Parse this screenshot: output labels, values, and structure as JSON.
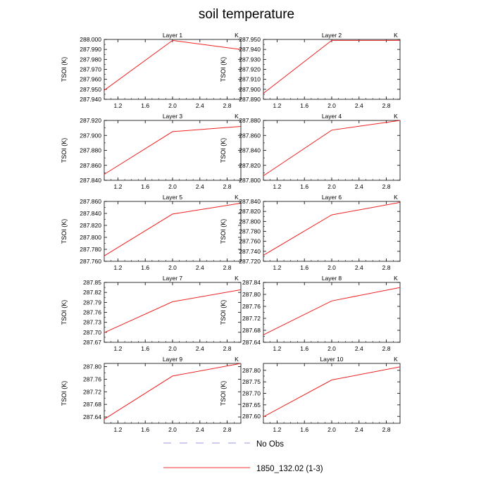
{
  "title": "soil temperature",
  "chart_data": [
    {
      "type": "line",
      "title": "Layer 1",
      "unit": "K",
      "ylabel": "TSOI  (K)",
      "x": [
        1,
        2,
        3
      ],
      "values": [
        287.949,
        287.999,
        287.99
      ],
      "ylim": [
        287.94,
        288.0
      ],
      "yticks": [
        287.94,
        287.95,
        287.96,
        287.97,
        287.98,
        287.99,
        288.0
      ],
      "ydec": 3,
      "xlim": [
        1,
        3
      ],
      "xticks": [
        1.2,
        1.6,
        2.0,
        2.4,
        2.8
      ]
    },
    {
      "type": "line",
      "title": "Layer 2",
      "unit": "K",
      "ylabel": "TSOI  (K)",
      "x": [
        1,
        2,
        3
      ],
      "values": [
        287.896,
        287.949,
        287.949
      ],
      "ylim": [
        287.89,
        287.95
      ],
      "yticks": [
        287.89,
        287.9,
        287.91,
        287.92,
        287.93,
        287.94,
        287.95
      ],
      "ydec": 3,
      "xlim": [
        1,
        3
      ],
      "xticks": [
        1.2,
        1.6,
        2.0,
        2.4,
        2.8
      ]
    },
    {
      "type": "line",
      "title": "Layer 3",
      "unit": "K",
      "ylabel": "TSOI  (K)",
      "x": [
        1,
        2,
        3
      ],
      "values": [
        287.848,
        287.905,
        287.912
      ],
      "ylim": [
        287.84,
        287.92
      ],
      "yticks": [
        287.84,
        287.86,
        287.88,
        287.9,
        287.92
      ],
      "ydec": 3,
      "xlim": [
        1,
        3
      ],
      "xticks": [
        1.2,
        1.6,
        2.0,
        2.4,
        2.8
      ]
    },
    {
      "type": "line",
      "title": "Layer 4",
      "unit": "K",
      "ylabel": "TSOI  (K)",
      "x": [
        1,
        2,
        3
      ],
      "values": [
        287.806,
        287.867,
        287.88
      ],
      "ylim": [
        287.8,
        287.88
      ],
      "yticks": [
        287.8,
        287.82,
        287.84,
        287.86,
        287.88
      ],
      "ydec": 3,
      "xlim": [
        1,
        3
      ],
      "xticks": [
        1.2,
        1.6,
        2.0,
        2.4,
        2.8
      ]
    },
    {
      "type": "line",
      "title": "Layer 5",
      "unit": "K",
      "ylabel": "TSOI  (K)",
      "x": [
        1,
        2,
        3
      ],
      "values": [
        287.769,
        287.839,
        287.857
      ],
      "ylim": [
        287.76,
        287.86
      ],
      "yticks": [
        287.76,
        287.78,
        287.8,
        287.82,
        287.84,
        287.86
      ],
      "ydec": 3,
      "xlim": [
        1,
        3
      ],
      "xticks": [
        1.2,
        1.6,
        2.0,
        2.4,
        2.8
      ]
    },
    {
      "type": "line",
      "title": "Layer 6",
      "unit": "K",
      "ylabel": "TSOI  (K)",
      "x": [
        1,
        2,
        3
      ],
      "values": [
        287.732,
        287.813,
        287.838
      ],
      "ylim": [
        287.72,
        287.84
      ],
      "yticks": [
        287.72,
        287.74,
        287.76,
        287.78,
        287.8,
        287.82,
        287.84
      ],
      "ydec": 3,
      "xlim": [
        1,
        3
      ],
      "xticks": [
        1.2,
        1.6,
        2.0,
        2.4,
        2.8
      ]
    },
    {
      "type": "line",
      "title": "Layer 7",
      "unit": "K",
      "ylabel": "TSOI  (K)",
      "x": [
        1,
        2,
        3
      ],
      "values": [
        287.699,
        287.792,
        287.828
      ],
      "ylim": [
        287.67,
        287.85
      ],
      "yticks": [
        287.67,
        287.7,
        287.73,
        287.76,
        287.79,
        287.82,
        287.85
      ],
      "ydec": 2,
      "xlim": [
        1,
        3
      ],
      "xticks": [
        1.2,
        1.6,
        2.0,
        2.4,
        2.8
      ]
    },
    {
      "type": "line",
      "title": "Layer 8",
      "unit": "K",
      "ylabel": "TSOI  (K)",
      "x": [
        1,
        2,
        3
      ],
      "values": [
        287.665,
        287.778,
        287.823
      ],
      "ylim": [
        287.64,
        287.84
      ],
      "yticks": [
        287.64,
        287.68,
        287.72,
        287.76,
        287.8,
        287.84
      ],
      "ydec": 2,
      "xlim": [
        1,
        3
      ],
      "xticks": [
        1.2,
        1.6,
        2.0,
        2.4,
        2.8
      ]
    },
    {
      "type": "line",
      "title": "Layer 9",
      "unit": "K",
      "ylabel": "TSOI  (K)",
      "x": [
        1,
        2,
        3
      ],
      "values": [
        287.633,
        287.77,
        287.81
      ],
      "ylim": [
        287.62,
        287.81
      ],
      "yticks": [
        287.64,
        287.68,
        287.72,
        287.76,
        287.8
      ],
      "ydec": 2,
      "xlim": [
        1,
        3
      ],
      "xticks": [
        1.2,
        1.6,
        2.0,
        2.4,
        2.8
      ]
    },
    {
      "type": "line",
      "title": "Layer 10",
      "unit": "K",
      "ylabel": "TSOI  (K)",
      "x": [
        1,
        2,
        3
      ],
      "values": [
        287.598,
        287.758,
        287.815
      ],
      "ylim": [
        287.57,
        287.83
      ],
      "yticks": [
        287.6,
        287.65,
        287.7,
        287.75,
        287.8
      ],
      "ydec": 2,
      "xlim": [
        1,
        3
      ],
      "xticks": [
        1.2,
        1.6,
        2.0,
        2.4,
        2.8
      ]
    }
  ],
  "legend": [
    {
      "label": "No Obs",
      "color": "#9a9ae0",
      "dash": true
    },
    {
      "label": "1850_132.02 (1-3)",
      "color": "#ee3030",
      "dash": false
    }
  ],
  "colors": {
    "series": "#ee2222",
    "axis": "#000000"
  }
}
